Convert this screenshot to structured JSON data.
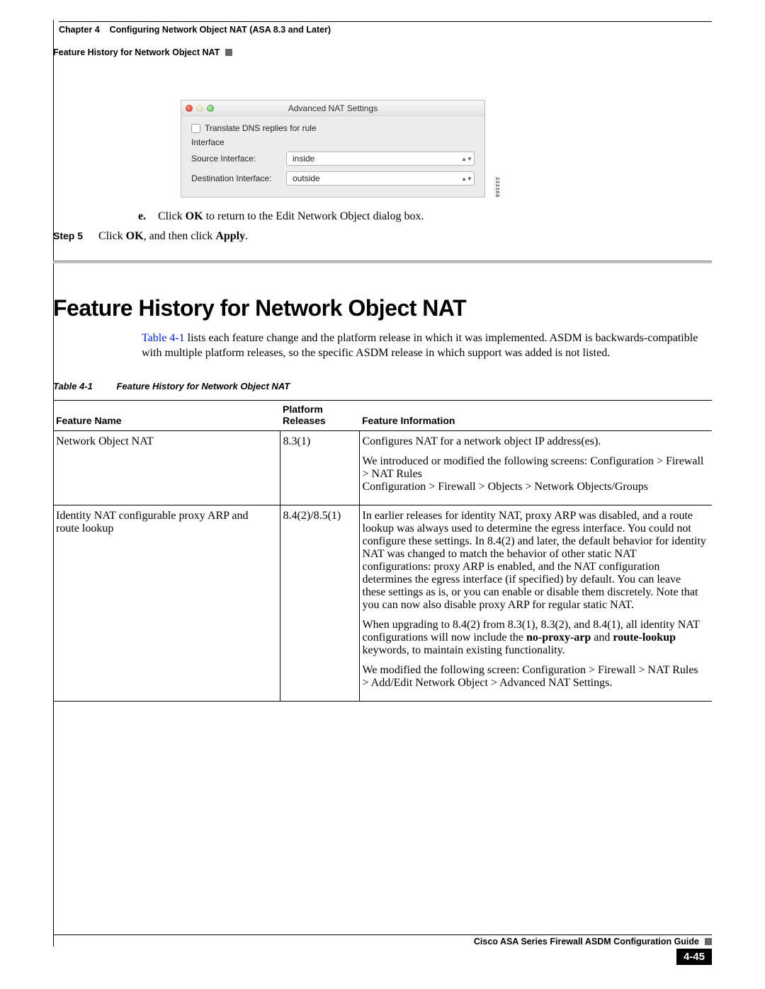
{
  "header": {
    "chapter_label": "Chapter 4",
    "chapter_title": "Configuring Network Object NAT (ASA 8.3 and Later)",
    "right_title": "Feature History for Network Object NAT"
  },
  "screenshot": {
    "window_title": "Advanced NAT Settings",
    "checkbox_label": "Translate DNS replies for rule",
    "interface_heading": "Interface",
    "source_label": "Source Interface:",
    "source_value": "inside",
    "dest_label": "Destination Interface:",
    "dest_value": "outside",
    "side_id": "333368"
  },
  "step_e": {
    "marker": "e.",
    "text_before": "Click ",
    "ok": "OK",
    "text_after": " to return to the Edit Network Object dialog box."
  },
  "step5": {
    "label": "Step 5",
    "t1": "Click ",
    "ok": "OK",
    "t2": ", and then click ",
    "apply": "Apply",
    "t3": "."
  },
  "section_title": "Feature History for Network Object NAT",
  "intro": {
    "link": "Table 4-1",
    "rest": " lists each feature change and the platform release in which it was implemented. ASDM is backwards-compatible with multiple platform releases, so the specific ASDM release in which support was added is not listed."
  },
  "table_caption": {
    "num": "Table 4-1",
    "title": "Feature History for Network Object NAT"
  },
  "table": {
    "headers": {
      "feature": "Feature Name",
      "releases": "Platform Releases",
      "info": "Feature Information"
    },
    "rows": [
      {
        "feature": "Network Object NAT",
        "release": "8.3(1)",
        "info_paras": [
          "Configures NAT for a network object IP address(es).",
          "We introduced or modified the following screens: Configuration > Firewall > NAT Rules\nConfiguration > Firewall > Objects > Network Objects/Groups"
        ]
      },
      {
        "feature": "Identity NAT configurable proxy ARP and route lookup",
        "release": "8.4(2)/8.5(1)",
        "info_paras": [
          "In earlier releases for identity NAT, proxy ARP was disabled, and a route lookup was always used to determine the egress interface. You could not configure these settings. In 8.4(2) and later, the default behavior for identity NAT was changed to match the behavior of other static NAT configurations: proxy ARP is enabled, and the NAT configuration determines the egress interface (if specified) by default. You can leave these settings as is, or you can enable or disable them discretely. Note that you can now also disable proxy ARP for regular static NAT.",
          "__UPGRADE__",
          "We modified the following screen: Configuration > Firewall > NAT Rules > Add/Edit Network Object > Advanced NAT Settings."
        ],
        "upgrade": {
          "t1": "When upgrading to 8.4(2) from 8.3(1), 8.3(2), and 8.4(1), all identity NAT configurations will now include the ",
          "b1": "no-proxy-arp",
          "t2": " and ",
          "b2": "route-lookup",
          "t3": " keywords, to maintain existing functionality."
        }
      }
    ]
  },
  "footer": {
    "guide": "Cisco ASA Series Firewall ASDM Configuration Guide",
    "page": "4-45"
  }
}
